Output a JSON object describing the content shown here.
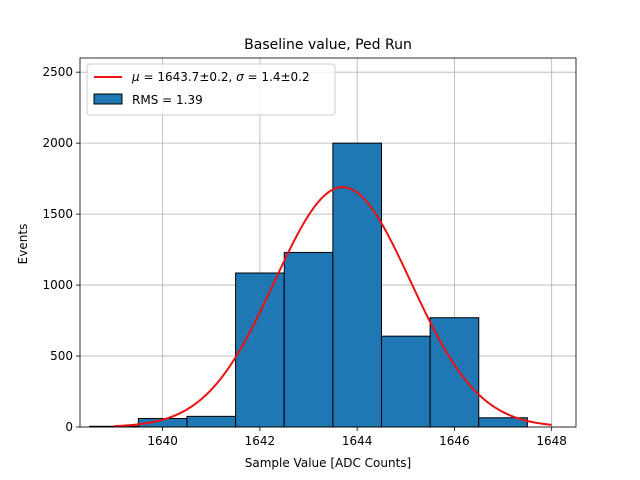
{
  "chart_data": {
    "type": "bar",
    "title": "Baseline value, Ped Run",
    "xlabel": "Sample Value [ADC Counts]",
    "ylabel": "Events",
    "xlim": [
      1638.3,
      1648.5
    ],
    "ylim": [
      0,
      2600
    ],
    "xticks": [
      1640,
      1642,
      1644,
      1646,
      1648
    ],
    "yticks": [
      0,
      500,
      1000,
      1500,
      2000,
      2500
    ],
    "grid": true,
    "histogram": {
      "name": "RMS = 1.39",
      "bin_width": 1,
      "bins": [
        {
          "left": 1638.5,
          "value": 5
        },
        {
          "left": 1639.5,
          "value": 60
        },
        {
          "left": 1640.5,
          "value": 75
        },
        {
          "left": 1641.5,
          "value": 1085
        },
        {
          "left": 1642.5,
          "value": 1230
        },
        {
          "left": 1643.5,
          "value": 2000
        },
        {
          "left": 1644.5,
          "value": 640
        },
        {
          "left": 1645.5,
          "value": 770
        },
        {
          "left": 1646.5,
          "value": 65
        }
      ],
      "color": "#1f77b4",
      "edge_color": "#000000"
    },
    "fit": {
      "name": "μ = 1643.7±0.2, σ = 1.4±0.2",
      "label_mu": "μ",
      "label_mu_rest": " = 1643.7±0.2, ",
      "label_sigma": "σ",
      "label_sigma_rest": " = 1.4±0.2",
      "type": "gaussian",
      "mu": 1643.7,
      "sigma": 1.4,
      "amplitude": 1690,
      "x_range": [
        1639,
        1648
      ],
      "color": "#ee1111"
    },
    "legend": {
      "placement": "top-left",
      "entries": [
        "μ = 1643.7±0.2, σ = 1.4±0.2",
        "RMS = 1.39"
      ]
    }
  }
}
